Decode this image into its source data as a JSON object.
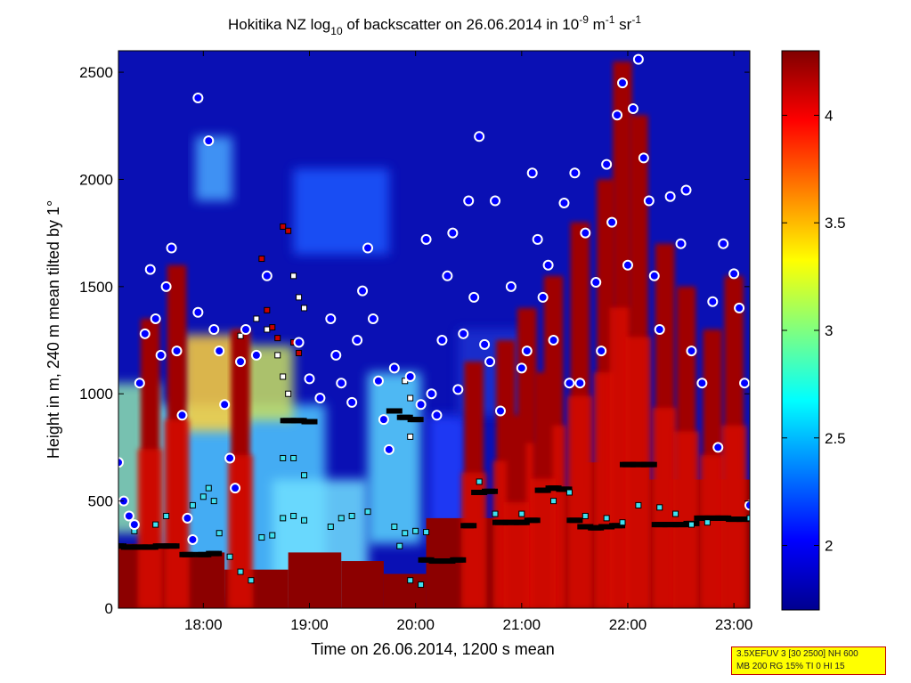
{
  "chart_data": {
    "type": "heatmap",
    "title": "Hokitika NZ log",
    "title_sub": "10",
    "title_mid": " of backscatter on 26.06.2014 in 10",
    "title_sup1": "-9",
    "title_unit": " m",
    "title_sup2": "-1",
    "title_end": " sr",
    "title_sup3": "-1",
    "xlabel": "Time on 26.06.2014, 1200 s mean",
    "ylabel": "Height in m, 240 m mean tilted by 1°",
    "x_range_hours": [
      17.2,
      23.15
    ],
    "ylim": [
      0,
      2600
    ],
    "x_ticks": [
      {
        "v": 18,
        "label": "18:00"
      },
      {
        "v": 19,
        "label": "19:00"
      },
      {
        "v": 20,
        "label": "20:00"
      },
      {
        "v": 21,
        "label": "21:00"
      },
      {
        "v": 22,
        "label": "22:00"
      },
      {
        "v": 23,
        "label": "23:00"
      }
    ],
    "y_ticks": [
      {
        "v": 0,
        "label": "0"
      },
      {
        "v": 500,
        "label": "500"
      },
      {
        "v": 1000,
        "label": "1000"
      },
      {
        "v": 1500,
        "label": "1500"
      },
      {
        "v": 2000,
        "label": "2000"
      },
      {
        "v": 2500,
        "label": "2500"
      }
    ],
    "colorbar": {
      "range": [
        1.7,
        4.3
      ],
      "ticks": [
        {
          "v": 2,
          "label": "2"
        },
        {
          "v": 2.5,
          "label": "2.5"
        },
        {
          "v": 3,
          "label": "3"
        },
        {
          "v": 3.5,
          "label": "3.5"
        },
        {
          "v": 4,
          "label": "4"
        }
      ],
      "colormap": "jet"
    },
    "mixing_layer_black_squares": [
      [
        17.2,
        290
      ],
      [
        17.3,
        285
      ],
      [
        17.4,
        285
      ],
      [
        17.5,
        285
      ],
      [
        17.6,
        290
      ],
      [
        17.7,
        290
      ],
      [
        17.85,
        250
      ],
      [
        18.0,
        250
      ],
      [
        18.1,
        255
      ],
      [
        18.8,
        875
      ],
      [
        18.9,
        875
      ],
      [
        19.0,
        870
      ],
      [
        19.8,
        920
      ],
      [
        19.9,
        890
      ],
      [
        20.0,
        880
      ],
      [
        20.1,
        225
      ],
      [
        20.2,
        220
      ],
      [
        20.3,
        220
      ],
      [
        20.4,
        225
      ],
      [
        20.5,
        385
      ],
      [
        20.6,
        540
      ],
      [
        20.7,
        545
      ],
      [
        20.8,
        400
      ],
      [
        20.9,
        400
      ],
      [
        21.0,
        400
      ],
      [
        21.1,
        410
      ],
      [
        21.2,
        550
      ],
      [
        21.3,
        560
      ],
      [
        21.4,
        555
      ],
      [
        21.5,
        410
      ],
      [
        21.6,
        380
      ],
      [
        21.7,
        375
      ],
      [
        21.8,
        380
      ],
      [
        21.9,
        385
      ],
      [
        22.0,
        670
      ],
      [
        22.1,
        670
      ],
      [
        22.2,
        670
      ],
      [
        22.3,
        390
      ],
      [
        22.4,
        390
      ],
      [
        22.5,
        390
      ],
      [
        22.6,
        395
      ],
      [
        22.7,
        420
      ],
      [
        22.8,
        420
      ],
      [
        22.9,
        420
      ],
      [
        23.0,
        415
      ],
      [
        23.1,
        415
      ]
    ],
    "cloud_base_circles": [
      [
        17.2,
        680
      ],
      [
        17.25,
        500
      ],
      [
        17.3,
        430
      ],
      [
        17.35,
        390
      ],
      [
        17.4,
        1050
      ],
      [
        17.45,
        1280
      ],
      [
        17.5,
        1580
      ],
      [
        17.55,
        1350
      ],
      [
        17.6,
        1180
      ],
      [
        17.65,
        1500
      ],
      [
        17.7,
        1680
      ],
      [
        17.75,
        1200
      ],
      [
        17.8,
        900
      ],
      [
        17.85,
        420
      ],
      [
        17.9,
        320
      ],
      [
        17.95,
        1380
      ],
      [
        17.95,
        2380
      ],
      [
        18.05,
        2180
      ],
      [
        18.1,
        1300
      ],
      [
        18.15,
        1200
      ],
      [
        18.2,
        950
      ],
      [
        18.25,
        700
      ],
      [
        18.3,
        560
      ],
      [
        18.35,
        1150
      ],
      [
        18.4,
        1300
      ],
      [
        18.5,
        1180
      ],
      [
        18.6,
        1550
      ],
      [
        18.9,
        1240
      ],
      [
        19.0,
        1070
      ],
      [
        19.1,
        980
      ],
      [
        19.2,
        1350
      ],
      [
        19.25,
        1180
      ],
      [
        19.3,
        1050
      ],
      [
        19.4,
        960
      ],
      [
        19.45,
        1250
      ],
      [
        19.5,
        1480
      ],
      [
        19.55,
        1680
      ],
      [
        19.6,
        1350
      ],
      [
        19.65,
        1060
      ],
      [
        19.7,
        880
      ],
      [
        19.75,
        740
      ],
      [
        19.8,
        1120
      ],
      [
        19.95,
        1080
      ],
      [
        20.05,
        950
      ],
      [
        20.1,
        1720
      ],
      [
        20.15,
        1000
      ],
      [
        20.2,
        900
      ],
      [
        20.25,
        1250
      ],
      [
        20.3,
        1550
      ],
      [
        20.35,
        1750
      ],
      [
        20.4,
        1020
      ],
      [
        20.45,
        1280
      ],
      [
        20.5,
        1900
      ],
      [
        20.55,
        1450
      ],
      [
        20.6,
        2200
      ],
      [
        20.65,
        1230
      ],
      [
        20.7,
        1150
      ],
      [
        20.75,
        1900
      ],
      [
        20.8,
        920
      ],
      [
        20.9,
        1500
      ],
      [
        21.0,
        1120
      ],
      [
        21.05,
        1200
      ],
      [
        21.1,
        2030
      ],
      [
        21.15,
        1720
      ],
      [
        21.2,
        1450
      ],
      [
        21.25,
        1600
      ],
      [
        21.3,
        1250
      ],
      [
        21.4,
        1890
      ],
      [
        21.45,
        1050
      ],
      [
        21.5,
        2030
      ],
      [
        21.55,
        1050
      ],
      [
        21.6,
        1750
      ],
      [
        21.7,
        1520
      ],
      [
        21.75,
        1200
      ],
      [
        21.8,
        2070
      ],
      [
        21.85,
        1800
      ],
      [
        21.9,
        2300
      ],
      [
        21.95,
        2450
      ],
      [
        22.0,
        1600
      ],
      [
        22.05,
        2330
      ],
      [
        22.1,
        2560
      ],
      [
        22.15,
        2100
      ],
      [
        22.2,
        1900
      ],
      [
        22.25,
        1550
      ],
      [
        22.3,
        1300
      ],
      [
        22.4,
        1920
      ],
      [
        22.5,
        1700
      ],
      [
        22.55,
        1950
      ],
      [
        22.6,
        1200
      ],
      [
        22.7,
        1050
      ],
      [
        22.8,
        1430
      ],
      [
        22.85,
        750
      ],
      [
        22.9,
        1700
      ],
      [
        23.0,
        1560
      ],
      [
        23.05,
        1400
      ],
      [
        23.1,
        1050
      ],
      [
        23.15,
        480
      ]
    ],
    "upper_layer_white_squares": [
      [
        18.35,
        1270
      ],
      [
        18.5,
        1350
      ],
      [
        18.6,
        1300
      ],
      [
        18.7,
        1180
      ],
      [
        18.75,
        1080
      ],
      [
        18.8,
        1000
      ],
      [
        18.85,
        1550
      ],
      [
        18.9,
        1450
      ],
      [
        18.95,
        1400
      ],
      [
        19.9,
        1060
      ],
      [
        19.95,
        980
      ],
      [
        19.95,
        800
      ]
    ],
    "upper_layer_red_squares": [
      [
        18.55,
        1630
      ],
      [
        18.6,
        1390
      ],
      [
        18.65,
        1310
      ],
      [
        18.7,
        1260
      ],
      [
        18.75,
        1780
      ],
      [
        18.8,
        1760
      ],
      [
        18.85,
        1240
      ],
      [
        18.9,
        1190
      ]
    ],
    "aerosol_layer_cyan_squares": [
      [
        17.35,
        360
      ],
      [
        17.55,
        390
      ],
      [
        17.65,
        430
      ],
      [
        17.9,
        480
      ],
      [
        18.0,
        520
      ],
      [
        18.05,
        560
      ],
      [
        18.1,
        500
      ],
      [
        18.15,
        350
      ],
      [
        18.25,
        240
      ],
      [
        18.35,
        170
      ],
      [
        18.45,
        130
      ],
      [
        18.55,
        330
      ],
      [
        18.65,
        340
      ],
      [
        18.75,
        420
      ],
      [
        18.85,
        430
      ],
      [
        18.95,
        410
      ],
      [
        18.75,
        700
      ],
      [
        18.85,
        700
      ],
      [
        18.95,
        620
      ],
      [
        19.2,
        380
      ],
      [
        19.3,
        420
      ],
      [
        19.4,
        430
      ],
      [
        19.55,
        450
      ],
      [
        19.8,
        380
      ],
      [
        19.85,
        290
      ],
      [
        19.95,
        130
      ],
      [
        20.05,
        110
      ],
      [
        19.9,
        350
      ],
      [
        20.0,
        360
      ],
      [
        20.1,
        355
      ],
      [
        20.6,
        590
      ],
      [
        20.75,
        440
      ],
      [
        21.0,
        440
      ],
      [
        21.3,
        500
      ],
      [
        21.45,
        540
      ],
      [
        21.6,
        430
      ],
      [
        21.8,
        420
      ],
      [
        21.95,
        400
      ],
      [
        22.1,
        480
      ],
      [
        22.3,
        470
      ],
      [
        22.45,
        440
      ],
      [
        22.6,
        390
      ],
      [
        22.75,
        400
      ],
      [
        23.15,
        420
      ]
    ]
  },
  "stamp": {
    "line1": "3.5XEFUV 3 [30 2500] NH 600",
    "line2": "MB 200 RG 15% TI 0 HI 15"
  },
  "colors": {
    "mixing_layer": "#000000",
    "cloud_base_edge": "#ffffff",
    "cloud_base_fill": "#0000ff",
    "red_points": "#c80000",
    "stamp_background": "#ffff00",
    "stamp_border": "#c00000"
  }
}
